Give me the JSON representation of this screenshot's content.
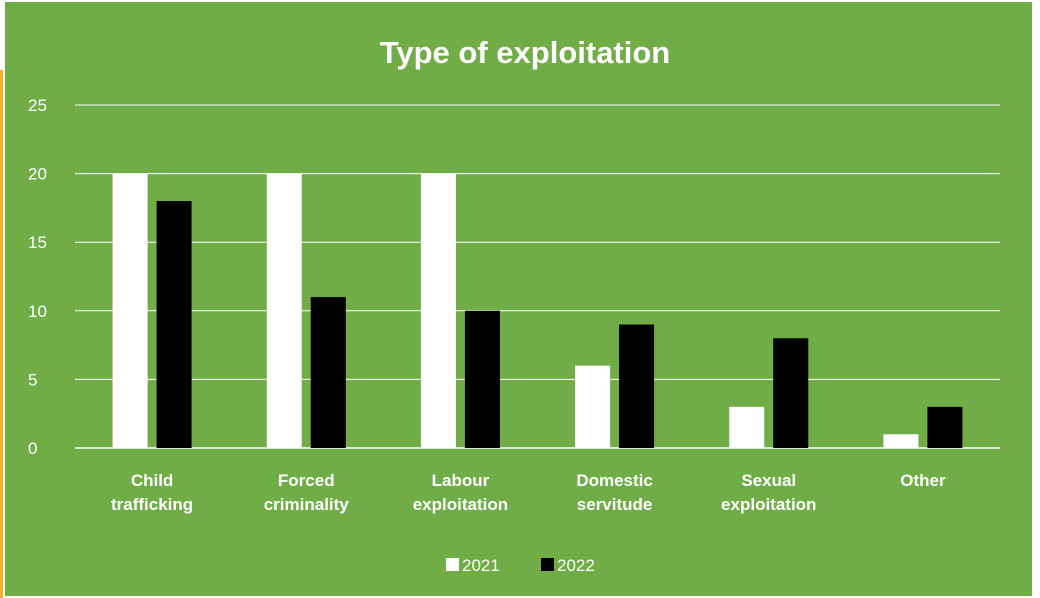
{
  "chart_data": {
    "type": "bar",
    "title": "Type of exploitation",
    "categories": [
      [
        "Child",
        "trafficking"
      ],
      [
        "Forced",
        "criminality"
      ],
      [
        "Labour",
        "exploitation"
      ],
      [
        "Domestic",
        "servitude"
      ],
      [
        "Sexual",
        "exploitation"
      ],
      [
        "Other"
      ]
    ],
    "series": [
      {
        "name": "2021",
        "color": "#ffffff",
        "values": [
          20,
          20,
          20,
          6,
          3,
          1
        ]
      },
      {
        "name": "2022",
        "color": "#000000",
        "values": [
          18,
          11,
          10,
          9,
          8,
          3
        ]
      }
    ],
    "ylim": [
      0,
      25
    ],
    "yticks": [
      "0",
      "5",
      "10",
      "15",
      "20",
      "25"
    ],
    "grid": true,
    "legend": "bottom"
  }
}
